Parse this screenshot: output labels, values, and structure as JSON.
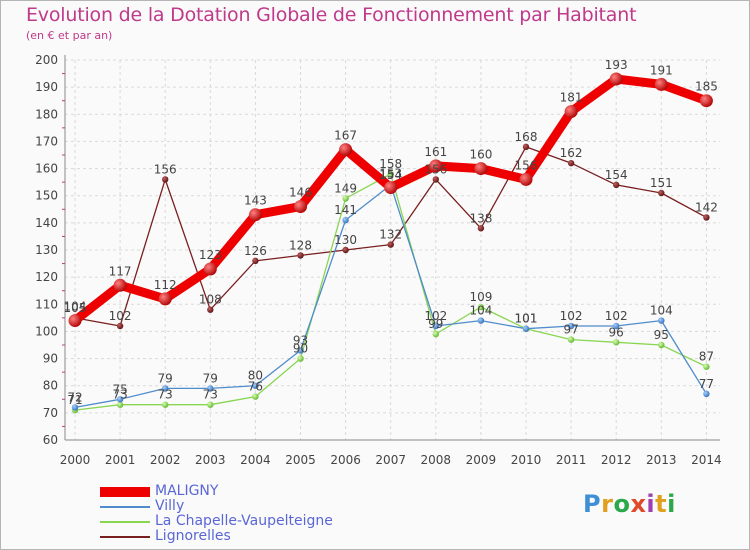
{
  "title": "Evolution de la Dotation Globale de Fonctionnement par Habitant",
  "subtitle": "(en € et par an)",
  "logo": {
    "text": "Proxiti",
    "letters": [
      "P",
      "r",
      "o",
      "x",
      "i",
      "t",
      "i"
    ],
    "colors": [
      "#3f8fd6",
      "#e0a020",
      "#2aa84a",
      "#e04a2a",
      "#a040b0",
      "#e0a020",
      "#2aa84a"
    ]
  },
  "chart_data": {
    "type": "line",
    "title": "Evolution de la Dotation Globale de Fonctionnement par Habitant",
    "subtitle": "(en € et par an)",
    "x": [
      2000,
      2001,
      2002,
      2003,
      2004,
      2005,
      2006,
      2007,
      2008,
      2009,
      2010,
      2011,
      2012,
      2013,
      2014
    ],
    "ylim": [
      60,
      200
    ],
    "yticks": [
      60,
      70,
      80,
      90,
      100,
      110,
      120,
      130,
      140,
      150,
      160,
      170,
      180,
      190,
      200
    ],
    "grid": true,
    "legend_position": "bottom-left",
    "series": [
      {
        "name": "MALIGNY",
        "color": "#ee0000",
        "values": [
          104,
          117,
          112,
          123,
          143,
          146,
          167,
          153,
          161,
          160,
          156,
          181,
          193,
          191,
          185
        ],
        "labels": [
          "104",
          "117",
          "112",
          "123",
          "143",
          "146",
          "167",
          "153",
          "161",
          "160",
          "156",
          "181",
          "193",
          "191",
          "185"
        ]
      },
      {
        "name": "Villy",
        "color": "#4f8ccc",
        "values": [
          72,
          75,
          79,
          79,
          80,
          93,
          141,
          154,
          102,
          104,
          101,
          102,
          102,
          104,
          77
        ],
        "labels": [
          "72",
          "75",
          "79",
          "79",
          "80",
          "93",
          "141",
          "154",
          "102",
          "104",
          "101",
          "102",
          "102",
          "104",
          "77"
        ]
      },
      {
        "name": "La Chapelle-Vaupelteigne",
        "color": "#88d651",
        "values": [
          71,
          73,
          73,
          73,
          76,
          90,
          149,
          158,
          99,
          109,
          101,
          97,
          96,
          95,
          87
        ],
        "labels": [
          "71",
          "73",
          "73",
          "73",
          "76",
          "90",
          "149",
          "158",
          "99",
          "109",
          "101",
          "97",
          "96",
          "95",
          "87"
        ]
      },
      {
        "name": "Lignorelles",
        "color": "#7a1f1f",
        "values": [
          105,
          102,
          156,
          108,
          126,
          128,
          130,
          132,
          156,
          138,
          168,
          162,
          154,
          151,
          142
        ],
        "labels": [
          "105",
          "102",
          "156",
          "108",
          "126",
          "128",
          "130",
          "132",
          "156",
          "138",
          "168",
          "162",
          "154",
          "151",
          "142"
        ]
      }
    ]
  }
}
